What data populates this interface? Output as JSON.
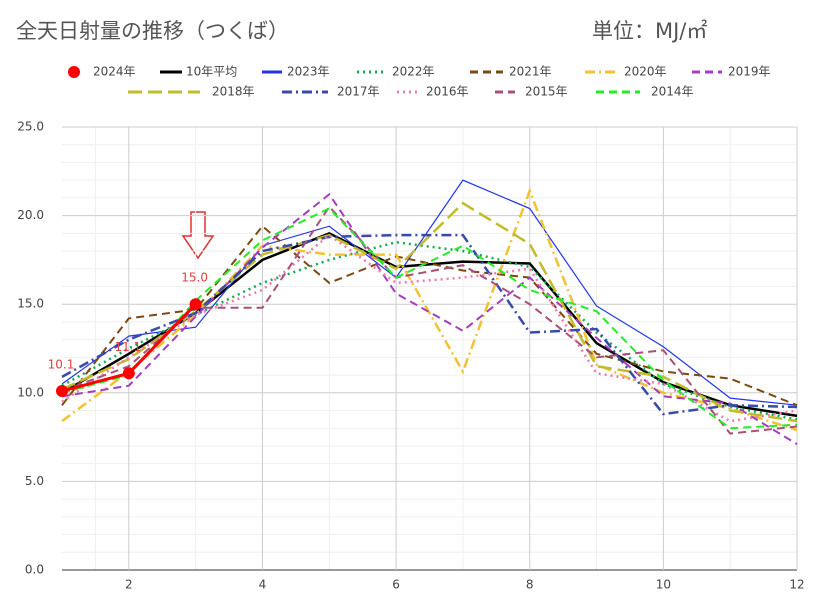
{
  "chart_data": {
    "type": "line",
    "title": "全天日射量の推移（つくば）",
    "subtitle": "単位：MJ/㎡",
    "x": [
      1,
      2,
      3,
      4,
      5,
      6,
      7,
      8,
      9,
      10,
      11,
      12
    ],
    "xlim": [
      1,
      12
    ],
    "xticks": [
      2,
      4,
      6,
      8,
      10,
      12
    ],
    "ylim": [
      0,
      25
    ],
    "yticks": [
      {
        "value": 0,
        "label": "0.0"
      },
      {
        "value": 5,
        "label": "5.0"
      },
      {
        "value": 10,
        "label": "10.0"
      },
      {
        "value": 15,
        "label": "15.0"
      },
      {
        "value": 20,
        "label": "20.0"
      },
      {
        "value": 25,
        "label": "25.0"
      }
    ],
    "grid": true,
    "series": [
      {
        "name": "2024年",
        "color": "#ff0000",
        "style": "solid",
        "markers": true,
        "values": [
          10.1,
          11.1,
          15.0,
          null,
          null,
          null,
          null,
          null,
          null,
          null,
          null,
          null
        ],
        "value_labels": [
          "10.1",
          "11.1",
          "15.0",
          null,
          null,
          null,
          null,
          null,
          null,
          null,
          null,
          null
        ]
      },
      {
        "name": "10年平均",
        "color": "#000000",
        "style": "solid",
        "values": [
          10.0,
          12.2,
          14.5,
          17.5,
          19.0,
          17.1,
          17.4,
          17.3,
          12.8,
          10.6,
          9.3,
          8.7
        ]
      },
      {
        "name": "2023年",
        "color": "#2233ee",
        "style": "thin",
        "values": [
          10.5,
          13.2,
          13.7,
          18.3,
          19.4,
          16.5,
          22.0,
          20.4,
          14.9,
          12.6,
          9.7,
          9.3
        ]
      },
      {
        "name": "2022年",
        "color": "#11aa55",
        "style": "dotted",
        "values": [
          10.4,
          12.5,
          14.4,
          16.2,
          17.5,
          18.5,
          18.0,
          17.1,
          13.4,
          10.5,
          9.2,
          8.5
        ]
      },
      {
        "name": "2021年",
        "color": "#7a4a12",
        "style": "dashed",
        "values": [
          9.3,
          14.2,
          14.7,
          19.4,
          16.2,
          17.7,
          16.9,
          16.5,
          12.2,
          11.2,
          10.8,
          9.3
        ]
      },
      {
        "name": "2020年",
        "color": "#f2c230",
        "style": "dashdot",
        "values": [
          8.4,
          11.2,
          14.4,
          18.3,
          17.8,
          17.8,
          11.2,
          21.4,
          11.6,
          10.0,
          9.1,
          7.9
        ]
      },
      {
        "name": "2019年",
        "color": "#a63cc0",
        "style": "dashed",
        "values": [
          9.8,
          10.4,
          14.3,
          18.2,
          21.2,
          15.6,
          13.5,
          16.5,
          13.1,
          9.8,
          9.4,
          7.1
        ]
      },
      {
        "name": "2018年",
        "color": "#c2bb2a",
        "style": "longdash",
        "values": [
          10.2,
          11.9,
          14.6,
          17.8,
          18.9,
          17.0,
          20.7,
          18.4,
          11.5,
          10.9,
          9.0,
          8.4
        ]
      },
      {
        "name": "2017年",
        "color": "#3a4aaa",
        "style": "dashdot",
        "values": [
          10.9,
          13.0,
          14.5,
          18.0,
          18.8,
          18.9,
          18.9,
          13.4,
          13.6,
          8.8,
          9.3,
          9.2
        ]
      },
      {
        "name": "2016年",
        "color": "#f07ab0",
        "style": "dotted",
        "values": [
          9.5,
          12.0,
          14.4,
          15.8,
          18.9,
          16.2,
          16.5,
          17.0,
          11.1,
          10.5,
          8.4,
          9.0
        ]
      },
      {
        "name": "2015年",
        "color": "#a8507a",
        "style": "dashed",
        "values": [
          10.1,
          11.5,
          14.8,
          14.8,
          20.5,
          16.5,
          17.2,
          15.0,
          12.0,
          12.4,
          7.7,
          8.1
        ]
      },
      {
        "name": "2014年",
        "color": "#22ee22",
        "style": "dashed",
        "values": [
          10.0,
          11.0,
          15.2,
          18.6,
          20.4,
          16.5,
          18.3,
          15.8,
          14.6,
          10.7,
          8.0,
          8.2
        ]
      }
    ]
  }
}
